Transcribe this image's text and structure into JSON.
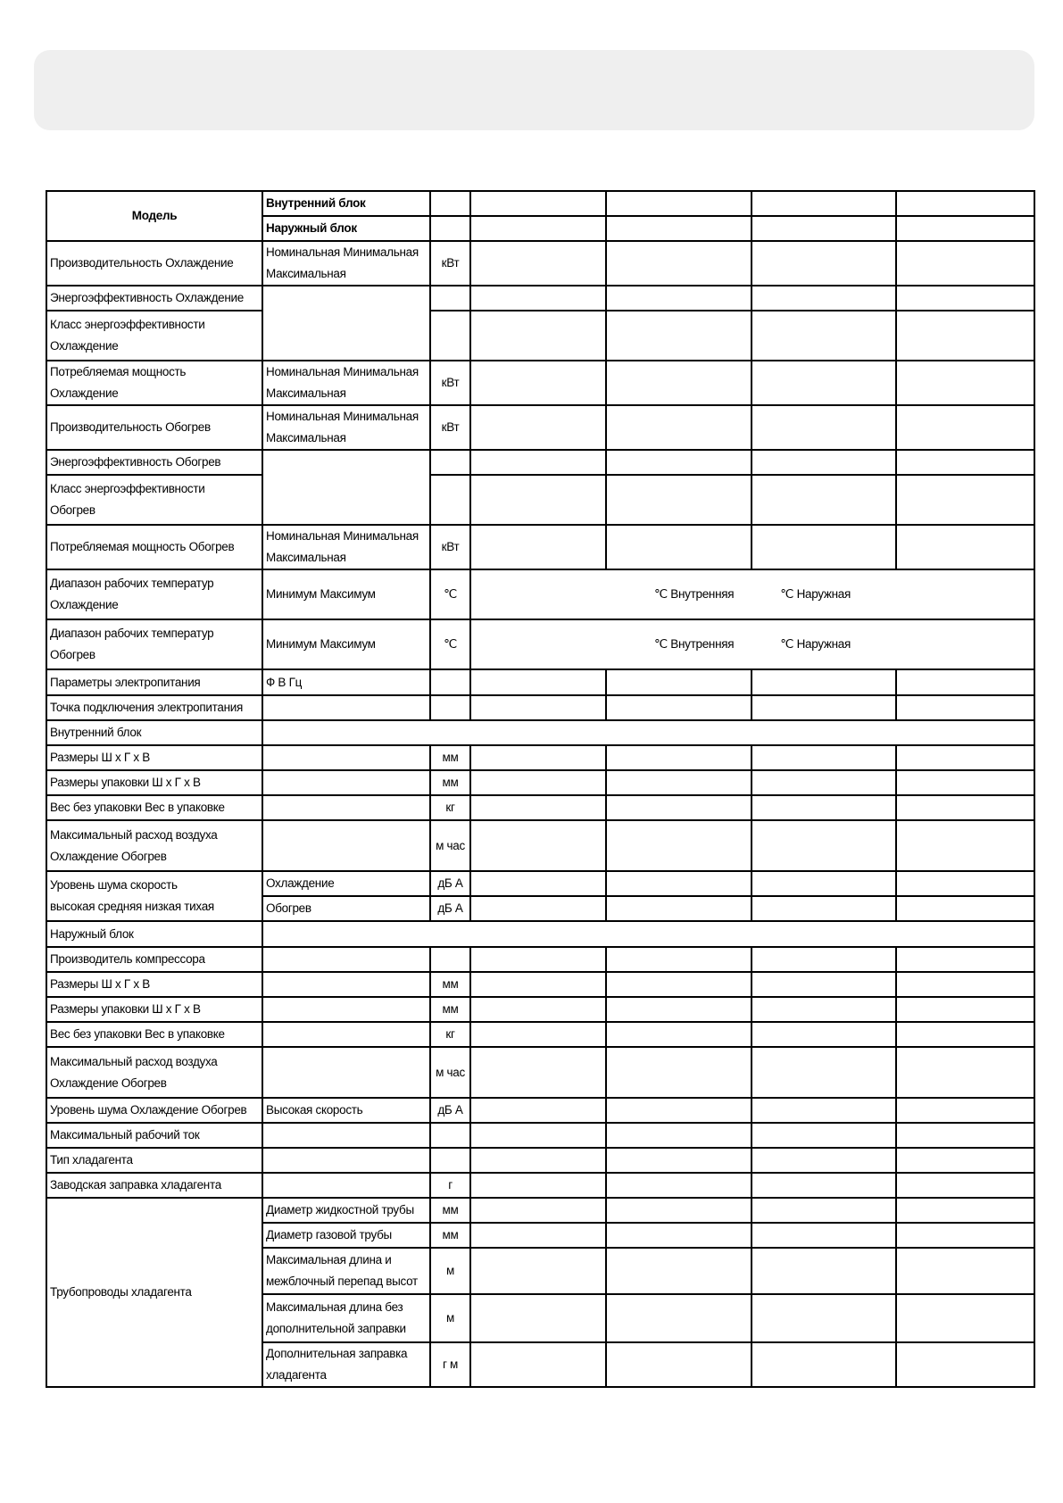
{
  "header": {
    "model": "Модель",
    "indoor": "Внутренний блок",
    "outdoor": "Наружный блок"
  },
  "rows": [
    {
      "label": "Производительность   Охлаждение",
      "sub": "Номинальная  Минимальная\nМаксимальная",
      "unit": "кВт"
    },
    {
      "label": "Энергоэффективность   Охлаждение",
      "sub": "",
      "unit": ""
    },
    {
      "label": "Класс энергоэффективности\nОхлаждение",
      "unit": ""
    },
    {
      "label": "Потребляемая мощность\nОхлаждение",
      "sub": "Номинальная  Минимальная\nМаксимальная",
      "unit": "кВт"
    },
    {
      "label": "Производительность   Обогрев",
      "sub": "Номинальная  Минимальная\nМаксимальная",
      "unit": "кВт"
    },
    {
      "label": "Энергоэффективность   Обогрев",
      "sub": "",
      "unit": ""
    },
    {
      "label": "Класс энергоэффективности\nОбогрев",
      "unit": ""
    },
    {
      "label": "Потребляемая мощность   Обогрев",
      "sub": "Номинальная  Минимальная\nМаксимальная",
      "unit": "кВт"
    },
    {
      "label": "Диапазон рабочих температур\nОхлаждение",
      "sub": "Минимум Максимум",
      "unit": "℃",
      "indoor_label": "℃ Внутренняя",
      "outdoor_label": "℃ Наружная"
    },
    {
      "label": "Диапазон рабочих температур\nОбогрев",
      "sub": "Минимум Максимум",
      "unit": "℃",
      "indoor_label": "℃ Внутренняя",
      "outdoor_label": "℃ Наружная"
    },
    {
      "label": "Параметры электропитания",
      "sub": "Ф В Гц",
      "unit": ""
    },
    {
      "label": "Точка подключения электропитания",
      "sub": "",
      "unit": ""
    },
    {
      "section": "Внутренний блок"
    },
    {
      "label": "Размеры  Ш x Г x В",
      "sub": "",
      "unit": "мм"
    },
    {
      "label": "Размеры  упаковки  Ш x Г x В",
      "sub": "",
      "unit": "мм"
    },
    {
      "label": "Вес без упаковки Вес в упаковке",
      "sub": "",
      "unit": "кг"
    },
    {
      "label": "Максимальный расход воздуха\n Охлаждение Обогрев",
      "sub": "",
      "unit": "м   час"
    },
    {
      "label": "Уровень шума  скорость\n высокая средняя низкая тихая",
      "sub": "Охлаждение",
      "unit": "дБ А"
    },
    {
      "sub": "Обогрев",
      "unit": "дБ А"
    },
    {
      "section": "Наружный блок"
    },
    {
      "label": "Производитель компрессора",
      "sub": "",
      "unit": ""
    },
    {
      "label": "Размеры  Ш x Г x В",
      "sub": "",
      "unit": "мм"
    },
    {
      "label": "Размеры  упаковки  Ш x Г x В",
      "sub": "",
      "unit": "мм"
    },
    {
      "label": "Вес без упаковки Вес в упаковке",
      "sub": "",
      "unit": "кг"
    },
    {
      "label": "Максимальный расход воздуха\n Охлаждение Обогрев",
      "sub": "",
      "unit": "м   час"
    },
    {
      "label": "Уровень шума  Охлаждение Обогрев",
      "sub": "Высокая скорость",
      "unit": "дБ А"
    },
    {
      "label": "Максимальный рабочий ток",
      "sub": "",
      "unit": ""
    },
    {
      "label": "Тип хладагента",
      "sub": "",
      "unit": ""
    },
    {
      "label": "Заводская заправка хладагента",
      "sub": "",
      "unit": "г"
    },
    {
      "label": "Трубопроводы хладагента",
      "sub": "Диаметр жидкостной трубы",
      "unit": "мм"
    },
    {
      "sub": "Диаметр газовой трубы",
      "unit": "мм"
    },
    {
      "sub": "Максимальная длина и\nмежблочный перепад высот",
      "unit": "м"
    },
    {
      "sub": "Максимальная длина без\nдополнительной заправки",
      "unit": "м"
    },
    {
      "sub": "Дополнительная заправка\nхладагента",
      "unit": "г м"
    }
  ]
}
